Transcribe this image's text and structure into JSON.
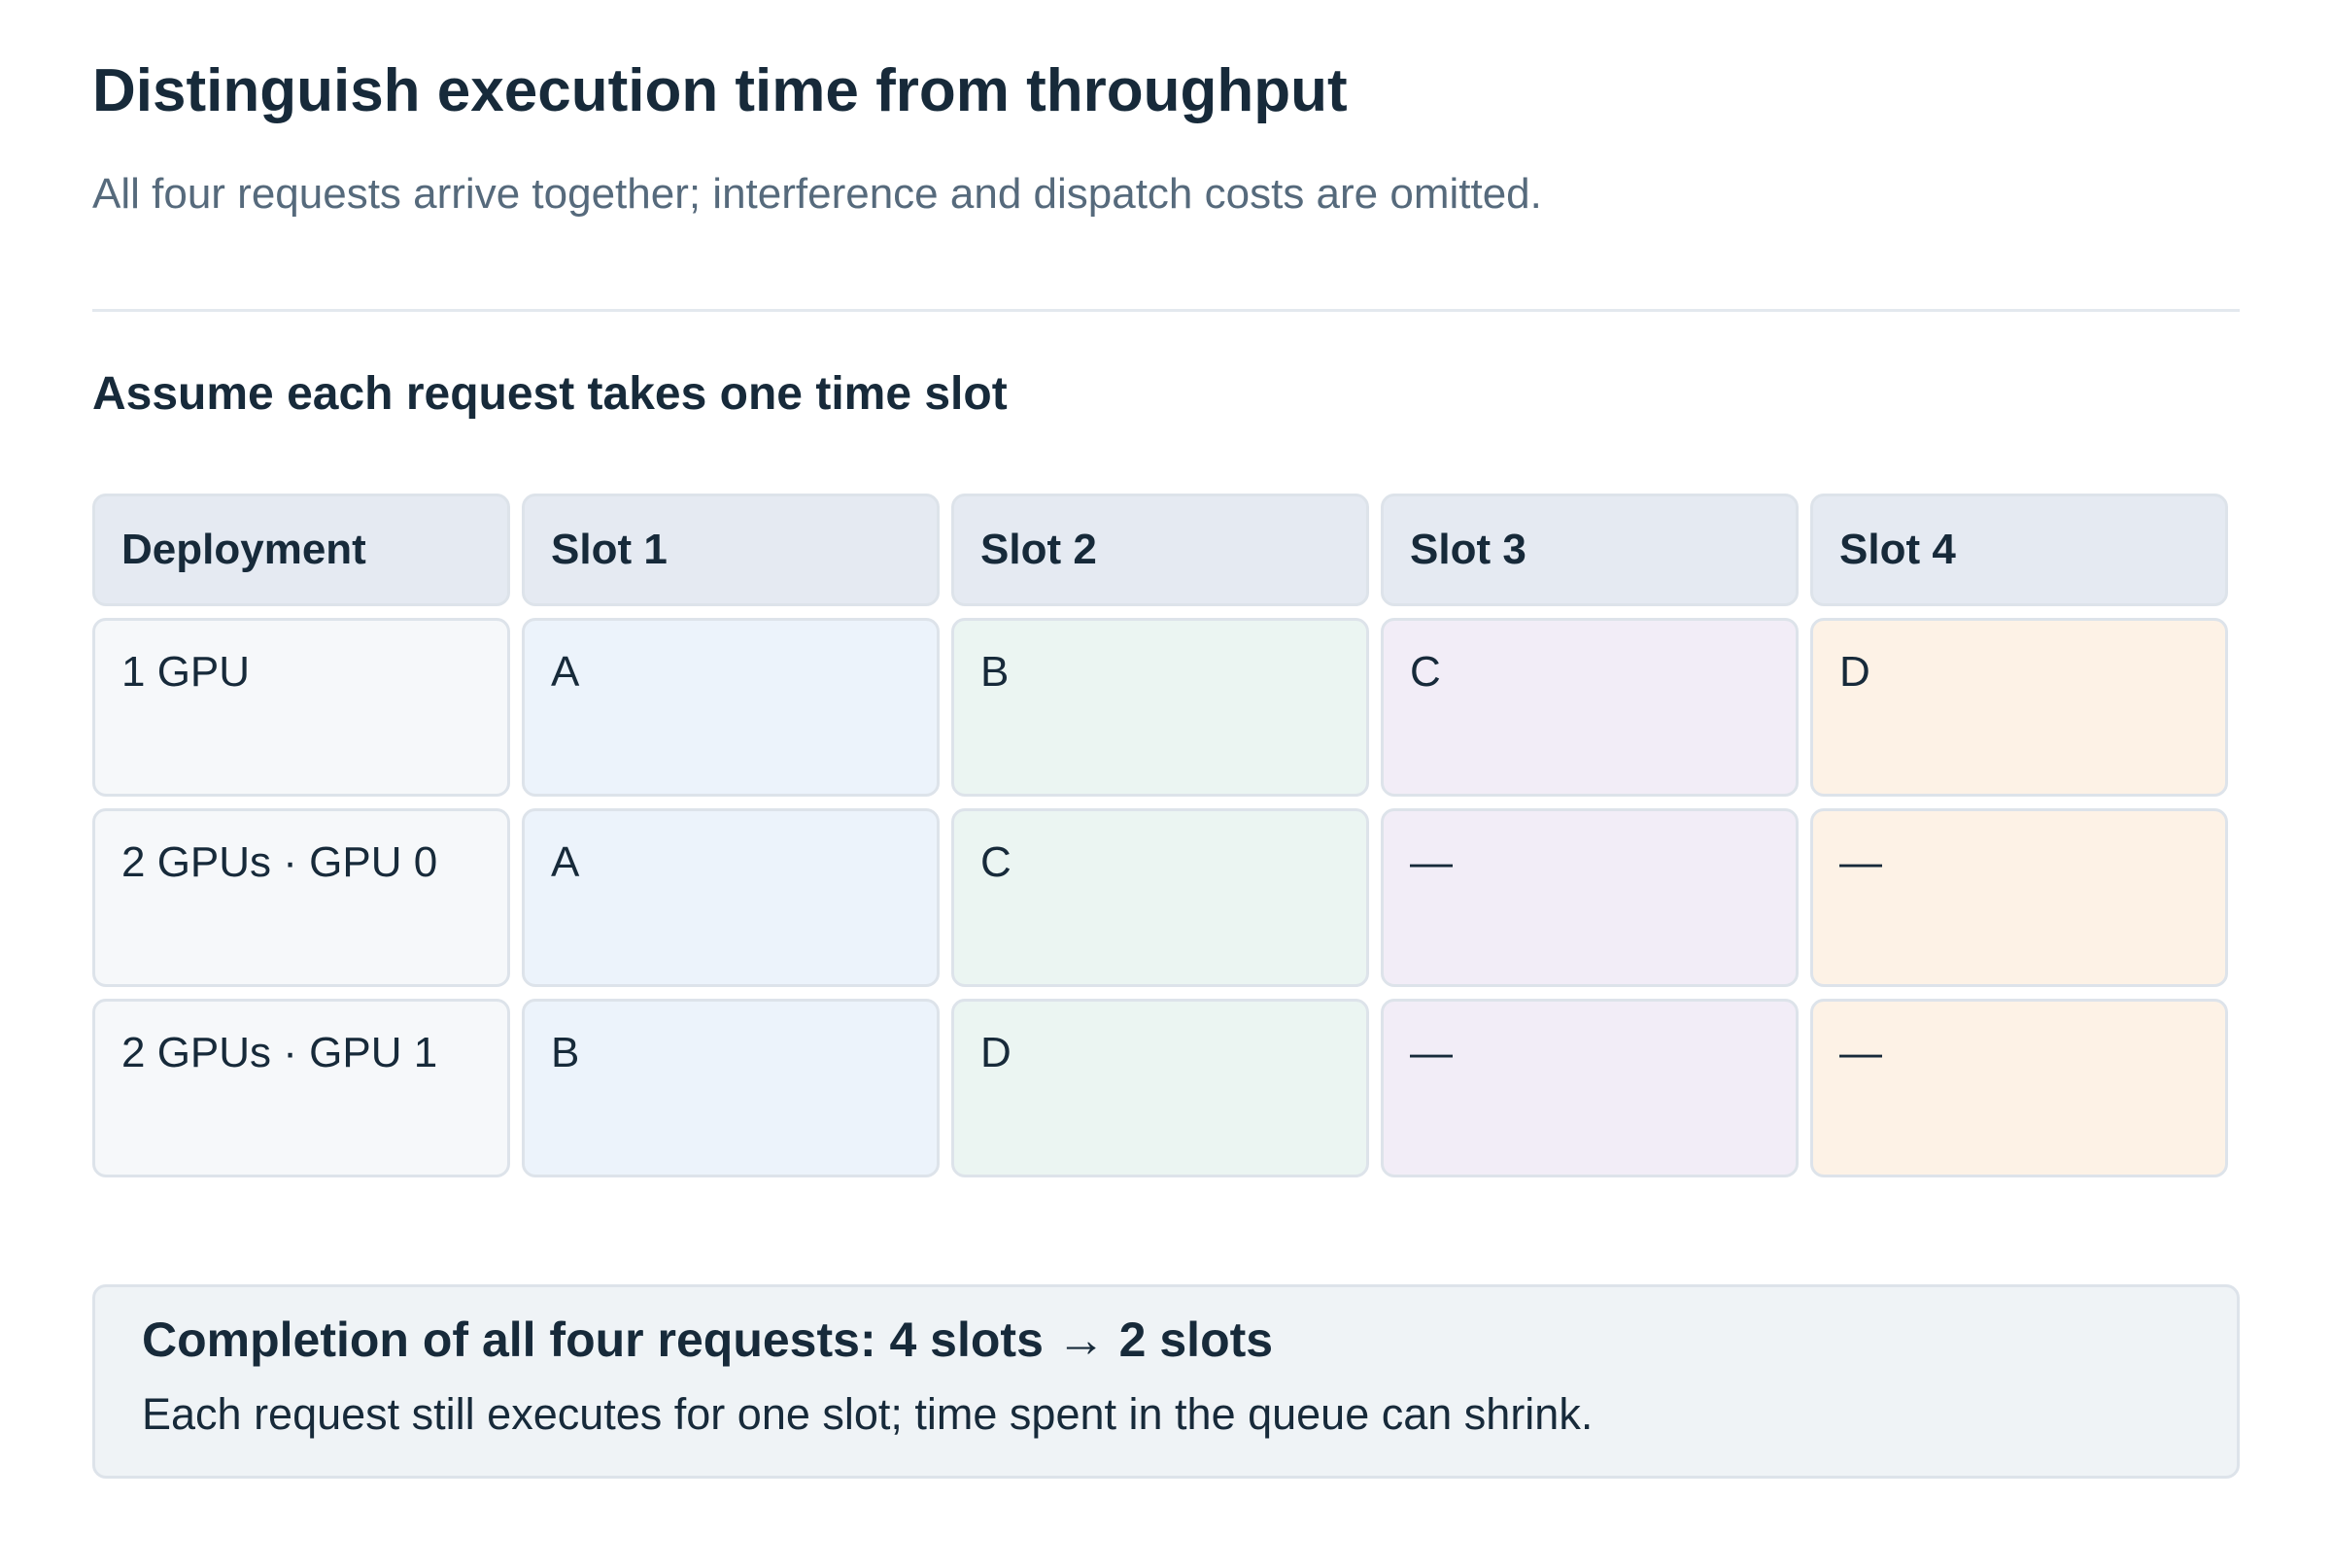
{
  "header": {
    "title": "Distinguish execution time from throughput",
    "subtitle": "All four requests arrive together; interference and dispatch costs are omitted."
  },
  "section_title": "Assume each request takes one time slot",
  "table": {
    "columns": [
      "Deployment",
      "Slot 1",
      "Slot 2",
      "Slot 3",
      "Slot 4"
    ],
    "rows": [
      [
        "1 GPU",
        "A",
        "B",
        "C",
        "D"
      ],
      [
        "2 GPUs · GPU 0",
        "A",
        "C",
        "—",
        "—"
      ],
      [
        "2 GPUs · GPU 1",
        "B",
        "D",
        "—",
        "—"
      ]
    ]
  },
  "callout": {
    "title": "Completion of all four requests: 4 slots → 2 slots",
    "text": "Each request still executes for one slot; time spent in the queue can shrink."
  }
}
